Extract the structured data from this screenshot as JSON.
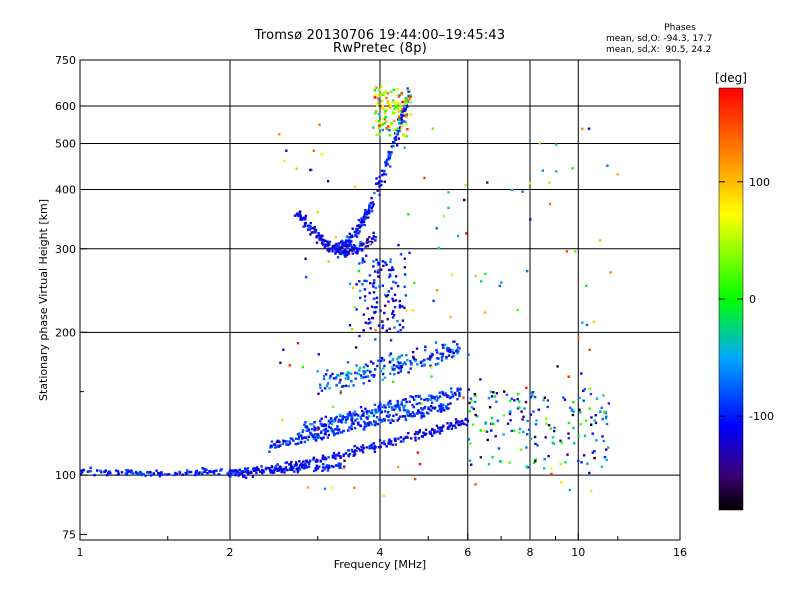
{
  "header": {
    "title_line1": "Tromsø 20130706 19:44:00–19:45:43",
    "title_line2": "RwPretec (8p)"
  },
  "stats": {
    "heading": "Phases",
    "row_o": "mean, sd,O: -94.3, 17.7",
    "row_x": "mean, sd,X:  90.5, 24.2"
  },
  "colorbar": {
    "unit_label": "[deg]",
    "ticks": [
      "100",
      "0",
      "-100"
    ],
    "tick_values": [
      100,
      0,
      -100
    ],
    "range": [
      -180,
      180
    ]
  },
  "chart_data": {
    "type": "scatter",
    "title": "Tromsø 20130706 19:44:00–19:45:43",
    "subtitle": "RwPretec (8p)",
    "xlabel": "Frequency [MHz]",
    "ylabel": "Stationary phase Virtual Height [km]",
    "x_scale": "log",
    "y_scale": "log",
    "xlim": [
      1,
      16
    ],
    "ylim": [
      73,
      750
    ],
    "x_ticks": [
      1,
      2,
      4,
      6,
      8,
      10,
      16
    ],
    "x_minor_ticks": [
      1.5,
      3,
      5,
      7,
      9,
      12
    ],
    "y_ticks": [
      75,
      100,
      200,
      300,
      400,
      500,
      600,
      750
    ],
    "y_minor_ticks": [
      150
    ],
    "grid": true,
    "traces": [
      {
        "name": "",
        "freq_range": [
          1.0,
          3.4
        ],
        "height_range": [
          97,
          106
        ],
        "phase_mean": -100
      },
      {
        "name": "",
        "freq_range": [
          2.0,
          6.0
        ],
        "height_range": [
          100,
          130
        ],
        "phase_mean": -110
      },
      {
        "name": "",
        "freq_range": [
          2.4,
          5.6
        ],
        "height_range": [
          115,
          140
        ],
        "phase_mean": -95
      },
      {
        "name": "",
        "freq_range": [
          2.8,
          5.8
        ],
        "height_range": [
          125,
          150
        ],
        "phase_mean": -90
      },
      {
        "name": "",
        "freq_range": [
          3.0,
          5.8
        ],
        "height_range": [
          150,
          190
        ],
        "phase_mean": -80
      },
      {
        "name": "",
        "freq_range": [
          3.3,
          4.6
        ],
        "height_range": [
          300,
          650
        ],
        "phase_mean": -100
      },
      {
        "name": "",
        "freq_range": [
          2.7,
          3.9
        ],
        "height_range": [
          295,
          355
        ],
        "phase_mean": -110
      },
      {
        "name": "",
        "freq_range": [
          3.9,
          4.6
        ],
        "height_range": [
          520,
          650
        ],
        "phase_mean": 60
      },
      {
        "name": "",
        "freq_range": [
          3.6,
          4.5
        ],
        "height_range": [
          200,
          290
        ],
        "phase_mean": -100
      },
      {
        "name": "",
        "freq_range": [
          6.0,
          11.5
        ],
        "height_range": [
          105,
          150
        ],
        "phase_mean": -60
      }
    ]
  }
}
